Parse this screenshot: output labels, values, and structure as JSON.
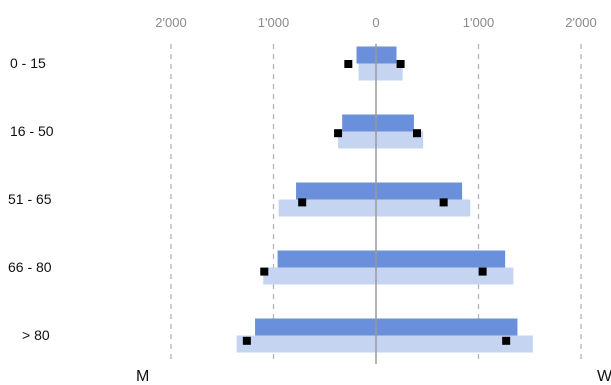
{
  "chart_data": {
    "type": "bar",
    "orientation": "horizontal",
    "subtype": "population pyramid",
    "categories": [
      "0 - 15",
      "16 - 50",
      "51 - 65",
      "66 - 80",
      "> 80"
    ],
    "x_ticks": [
      -2000,
      -1000,
      0,
      1000,
      2000
    ],
    "x_tick_labels": [
      "2'000",
      "1'000",
      "0",
      "1'000",
      "2'000"
    ],
    "xlim": [
      -2000,
      2000
    ],
    "side_labels": {
      "left": "M",
      "right": "W"
    },
    "grid": "vertical dashed at ticks",
    "series": [
      {
        "color": "#6a8fdb",
        "men": [
          190,
          330,
          780,
          960,
          1180
        ],
        "women": [
          200,
          370,
          840,
          1260,
          1380
        ]
      },
      {
        "color": "#c5d4f0",
        "men": [
          170,
          370,
          950,
          1100,
          1360
        ],
        "women": [
          260,
          460,
          920,
          1340,
          1530
        ]
      }
    ],
    "markers": {
      "color": "#000000",
      "men": [
        270,
        370,
        720,
        1090,
        1260
      ],
      "women": [
        240,
        400,
        660,
        1040,
        1270
      ]
    }
  }
}
